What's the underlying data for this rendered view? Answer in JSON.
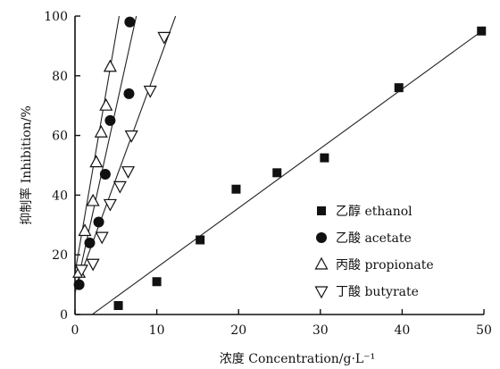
{
  "chart_data": {
    "type": "scatter",
    "title": "",
    "xlabel": "浓度 Concentration/g·L⁻¹",
    "ylabel": "抑制率 Inhibition/%",
    "xlim": [
      0,
      50
    ],
    "ylim": [
      0,
      100
    ],
    "xticks": [
      0,
      10,
      20,
      30,
      40,
      50
    ],
    "yticks": [
      0,
      20,
      40,
      60,
      80,
      100
    ],
    "grid": false,
    "legend_position": "right",
    "series": [
      {
        "name": "乙醇 ethanol",
        "marker": "square",
        "x": [
          5.3,
          10,
          15.3,
          19.7,
          24.7,
          30.5,
          39.6,
          49.7
        ],
        "y": [
          3,
          11,
          25,
          42,
          47.5,
          52.5,
          76,
          95
        ],
        "fit": [
          [
            2.1,
            0
          ],
          [
            50,
            95.5
          ]
        ]
      },
      {
        "name": "乙酸 acetate",
        "marker": "circle",
        "x": [
          0.5,
          1.8,
          2.9,
          3.7,
          4.3,
          6.6,
          6.7
        ],
        "y": [
          10,
          24,
          31,
          47,
          65,
          74,
          98
        ],
        "fit": [
          [
            0,
            7
          ],
          [
            7.5,
            100
          ]
        ]
      },
      {
        "name": "丙酸 propionate",
        "marker": "triangle-up",
        "x": [
          0.5,
          1.2,
          2.2,
          2.6,
          3.2,
          3.8,
          4.3
        ],
        "y": [
          14,
          28,
          38,
          51,
          61,
          70,
          83
        ],
        "fit": [
          [
            0,
            14
          ],
          [
            5.4,
            100
          ]
        ]
      },
      {
        "name": "丁酸 butyrate",
        "marker": "triangle-down",
        "x": [
          0.8,
          2.2,
          3.3,
          4.3,
          5.5,
          6.5,
          6.9,
          9.2,
          10.9
        ],
        "y": [
          15,
          17,
          26,
          37,
          43,
          48,
          60,
          75,
          93
        ],
        "fit": [
          [
            0,
            8
          ],
          [
            12.3,
            100
          ]
        ]
      }
    ]
  }
}
